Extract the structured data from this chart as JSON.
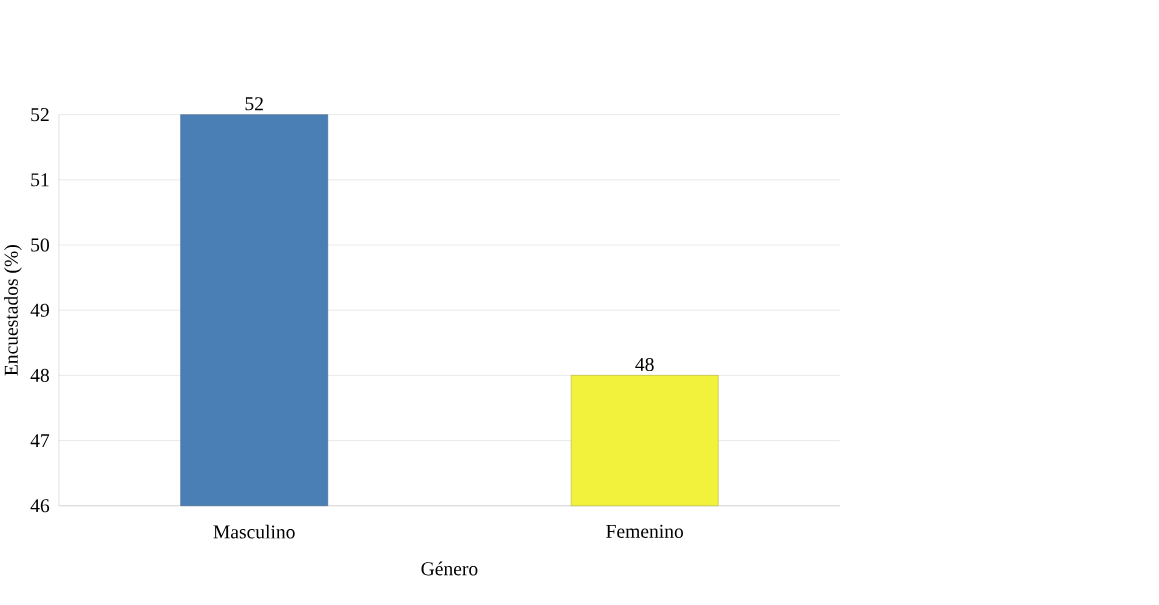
{
  "chart_data": {
    "type": "bar",
    "xlabel": "Género",
    "ylabel": "Encuestados (%)",
    "categories": [
      "Masculino",
      "Femenino"
    ],
    "values": [
      52,
      48
    ],
    "colors": [
      "#4a7fb5",
      "#f2f23c"
    ],
    "ylim": [
      46,
      52
    ],
    "yticks": [
      46,
      47,
      48,
      49,
      50,
      51,
      52
    ],
    "grid": "y",
    "data_labels": true
  }
}
